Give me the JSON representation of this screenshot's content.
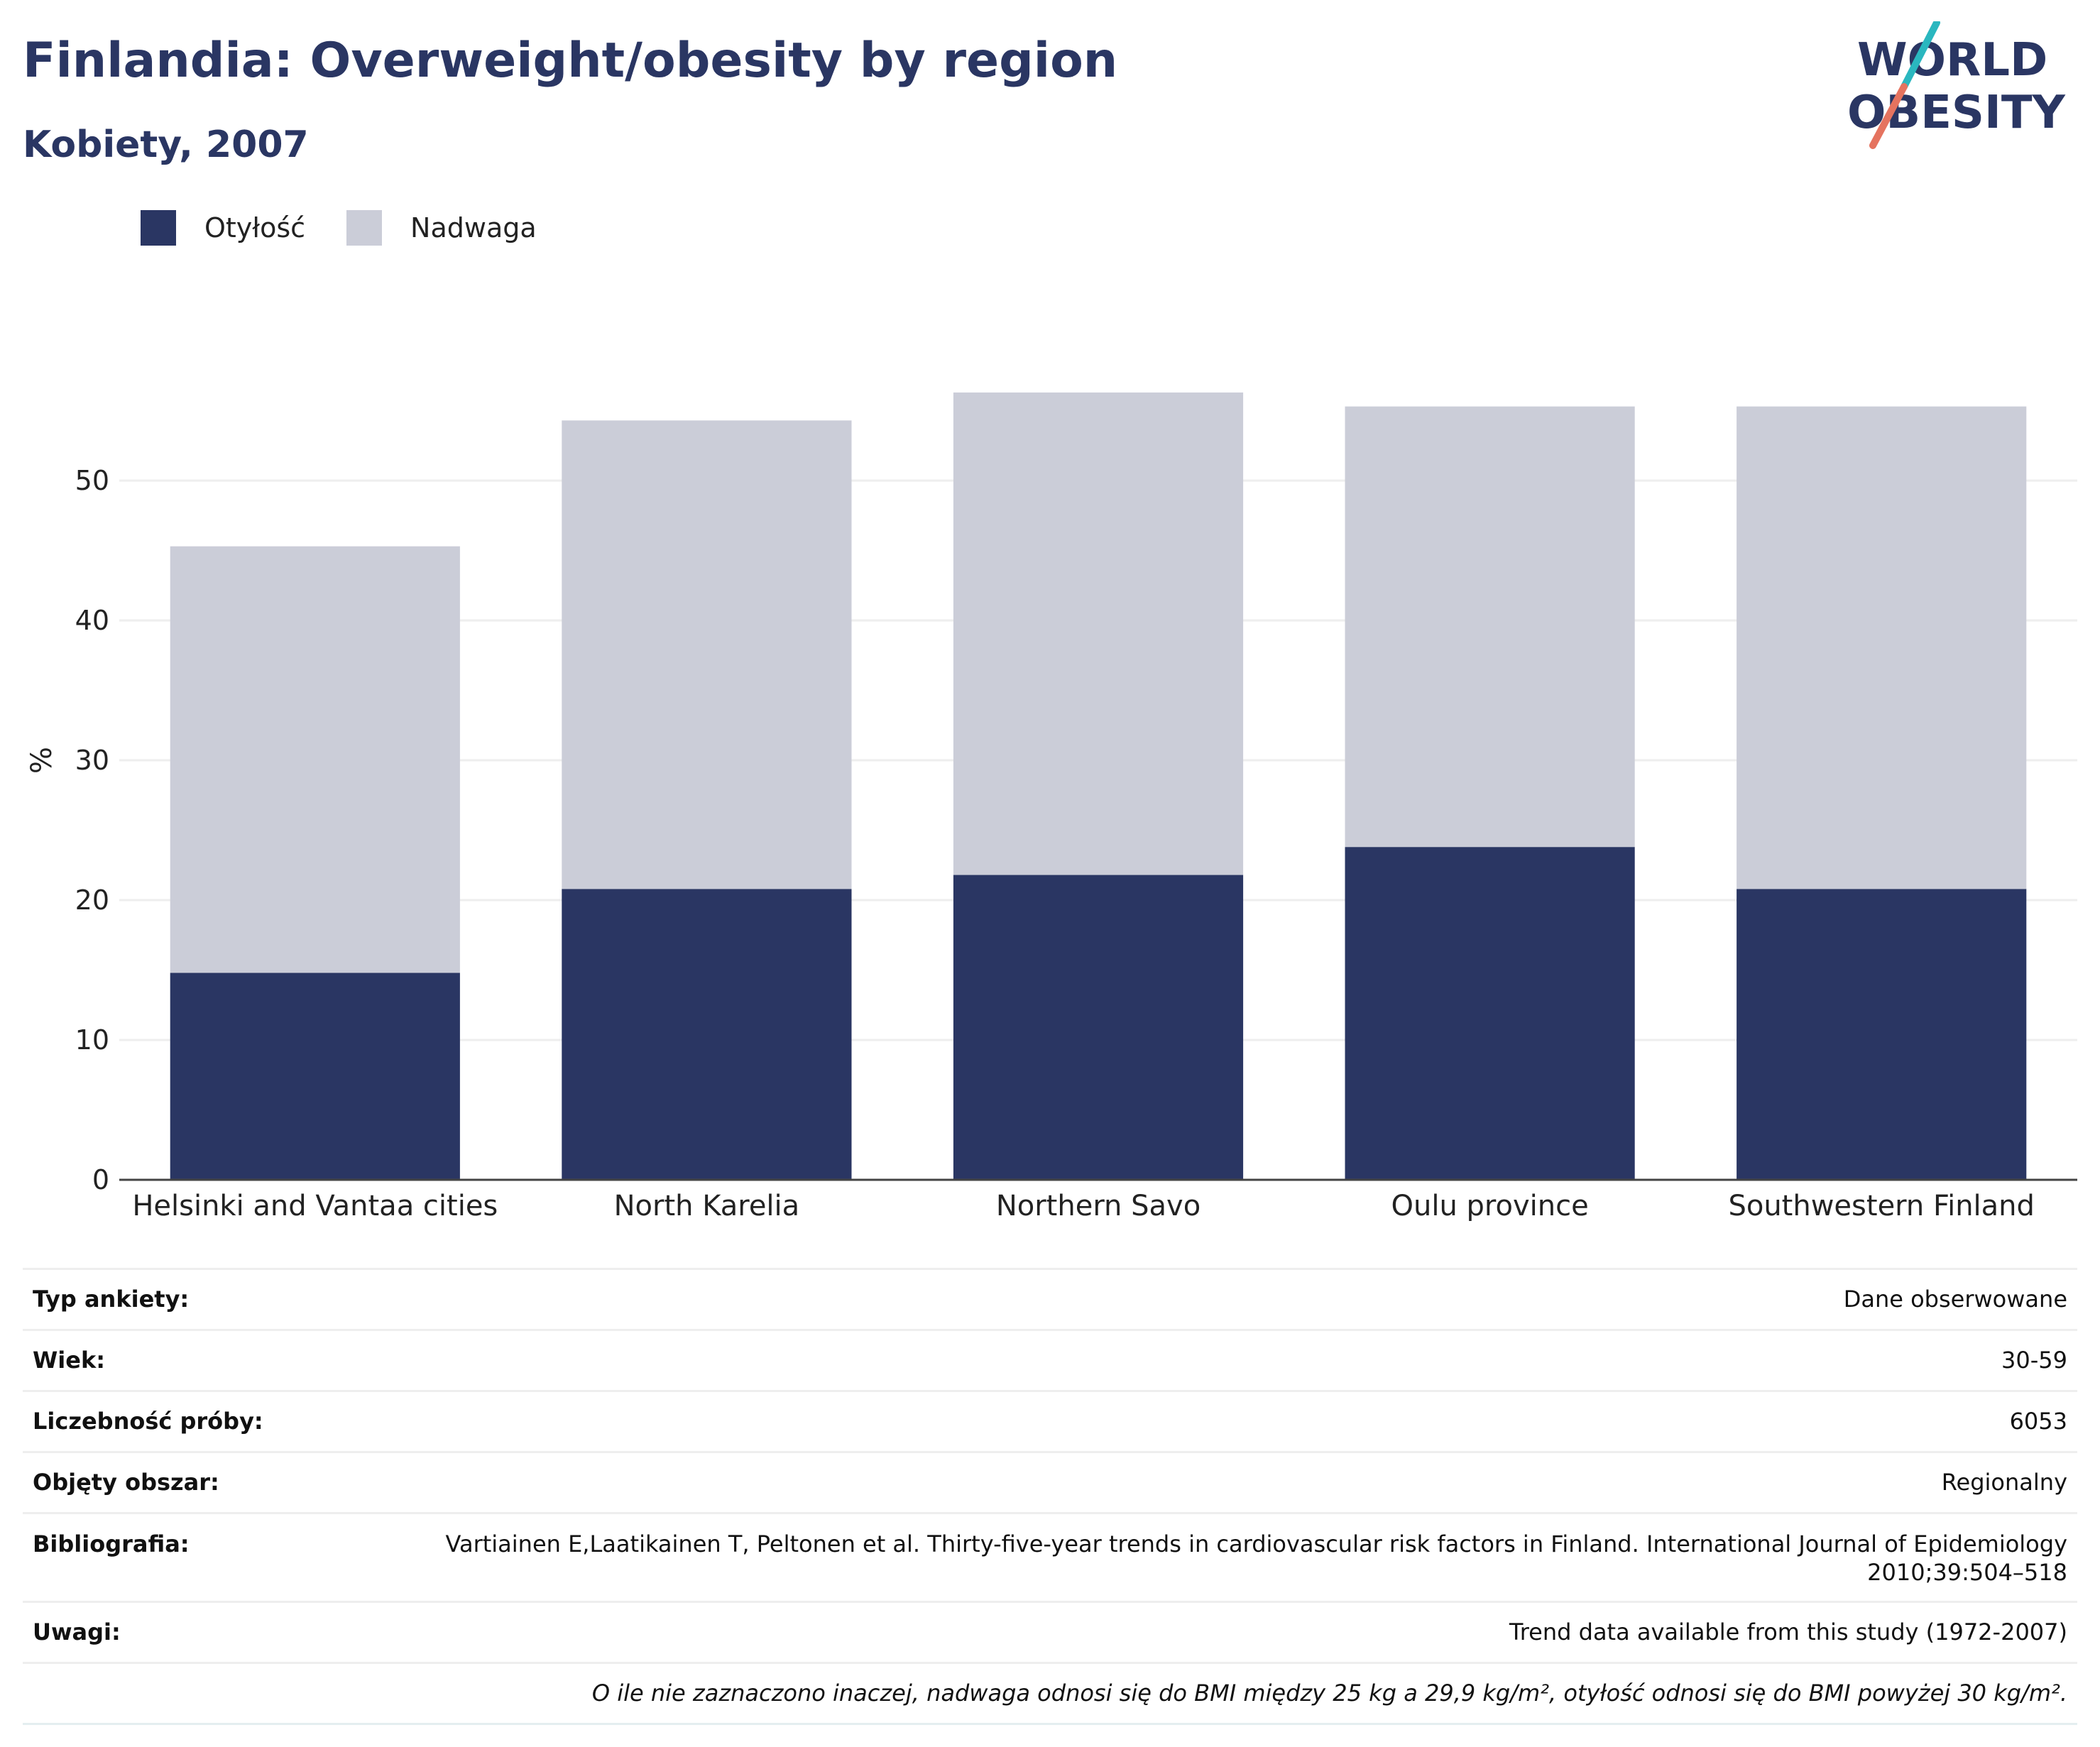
{
  "header": {
    "title": "Finlandia: Overweight/obesity by region",
    "subtitle": "Kobiety, 2007"
  },
  "logo": {
    "line1": "WORLD",
    "line2": "OBESITY",
    "colors": {
      "text": "#2a3663",
      "slash_top": "#2ab7bf",
      "slash_bottom": "#e5735f"
    }
  },
  "colors": {
    "obesity": "#2a3663",
    "overweight": "#cbcdd8",
    "grid": "#eeeeee",
    "axis": "#444444"
  },
  "chart_data": {
    "type": "bar",
    "stacked": true,
    "ylabel": "%",
    "xlabel": "",
    "ylim": [
      0,
      60
    ],
    "yticks": [
      0,
      10,
      20,
      30,
      40,
      50
    ],
    "grid": true,
    "legend_position": "top-left",
    "categories": [
      "Helsinki and Vantaa cities",
      "North Karelia",
      "Northern Savo",
      "Oulu province",
      "Southwestern Finland"
    ],
    "series": [
      {
        "name": "Otyłość",
        "color": "#2a3663",
        "values": [
          14.8,
          20.8,
          21.8,
          23.8,
          20.8
        ]
      },
      {
        "name": "Nadwaga",
        "color": "#cbcdd8",
        "values": [
          30.5,
          33.5,
          34.5,
          31.5,
          34.5
        ]
      }
    ]
  },
  "meta": [
    {
      "key": "Typ ankiety:",
      "value": "Dane obserwowane"
    },
    {
      "key": "Wiek:",
      "value": "30-59"
    },
    {
      "key": "Liczebność próby:",
      "value": "6053"
    },
    {
      "key": "Objęty obszar:",
      "value": "Regionalny"
    },
    {
      "key": "Bibliografia:",
      "value": "Vartiainen E,Laatikainen T, Peltonen et al. Thirty-five-year trends in cardiovascular risk factors in Finland. International Journal of Epidemiology 2010;39:504–518"
    },
    {
      "key": "Uwagi:",
      "value": "Trend data available from this study (1972-2007)"
    }
  ],
  "footnote": "O ile nie zaznaczono inaczej, nadwaga odnosi się do BMI między 25 kg a 29,9 kg/m², otyłość odnosi się do BMI powyżej 30 kg/m²."
}
